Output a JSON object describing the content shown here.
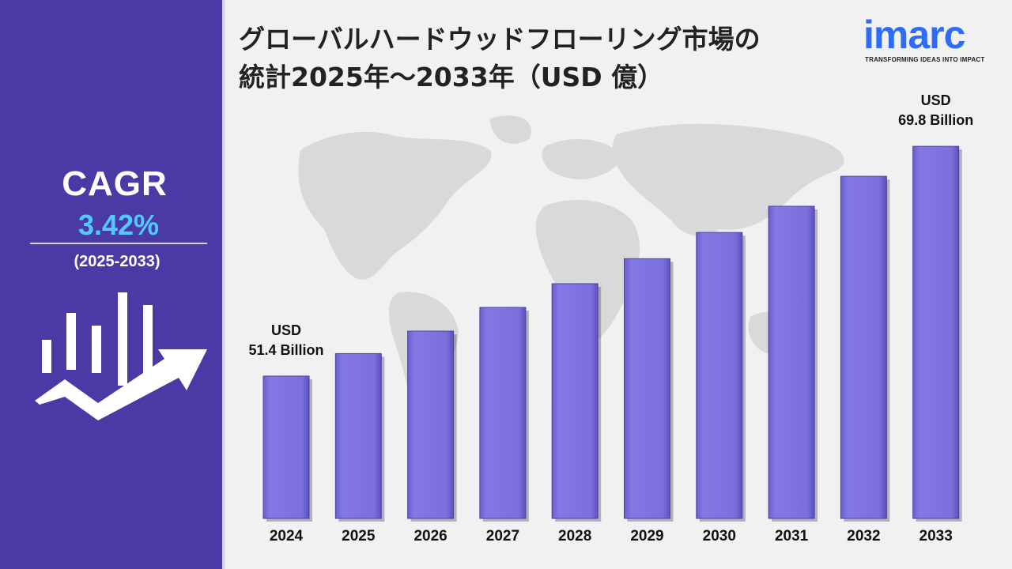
{
  "title": {
    "line1": "グローバルハードウッドフローリング市場の",
    "line2": "統計2025年～2033年（USD 億）"
  },
  "logo": {
    "wordmark": "imarc",
    "tagline": "TRANSFORMING IDEAS INTO IMPACT"
  },
  "cagr": {
    "label": "CAGR",
    "value": "3.42%",
    "period": "(2025-2033)"
  },
  "annotations": {
    "first": {
      "line1": "USD",
      "line2": "51.4 Billion"
    },
    "last": {
      "line1": "USD",
      "line2": "69.8 Billion"
    }
  },
  "colors": {
    "panel": "#4a3aa6",
    "cagr_value": "#55c8ff",
    "bar": "#7a6edb",
    "logo": "#2e6cf6"
  },
  "chart_data": {
    "type": "bar",
    "categories": [
      "2024",
      "2025",
      "2026",
      "2027",
      "2028",
      "2029",
      "2030",
      "2031",
      "2032",
      "2033"
    ],
    "values": [
      51.4,
      53.2,
      55.0,
      56.9,
      58.8,
      60.8,
      62.9,
      65.0,
      67.4,
      69.8
    ],
    "ylim": [
      40,
      72
    ],
    "grid": false,
    "legend": "none"
  }
}
